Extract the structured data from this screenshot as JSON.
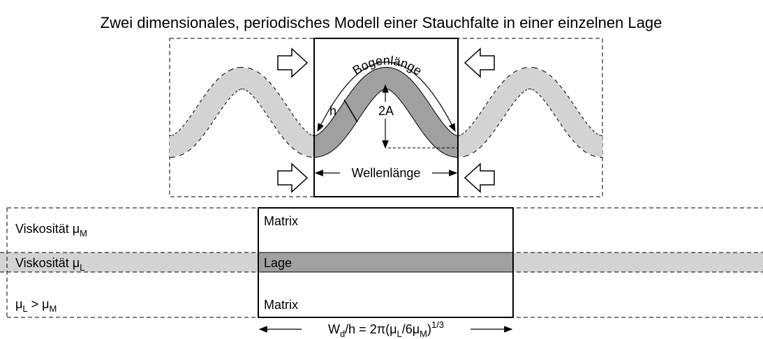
{
  "title": "Zwei dimensionales, periodisches Modell einer Stauchfalte in einer einzelnen Lage",
  "diagram": {
    "arc_length": "Bogenlänge",
    "thickness": "h",
    "amplitude": "2A",
    "wavelength": "Wellenlänge"
  },
  "layers": {
    "matrix_viscosity": [
      "Viskosität μ",
      "M"
    ],
    "layer_viscosity": [
      "Viskosität μ",
      "L"
    ],
    "condition": [
      "μ",
      "L",
      " > μ",
      "M"
    ],
    "box_labels": [
      "Matrix",
      "Lage",
      "Matrix"
    ],
    "formula": [
      "W",
      "d",
      "/h = 2π(μ",
      "L",
      "/6μ",
      "M",
      ")",
      "1/3"
    ]
  }
}
